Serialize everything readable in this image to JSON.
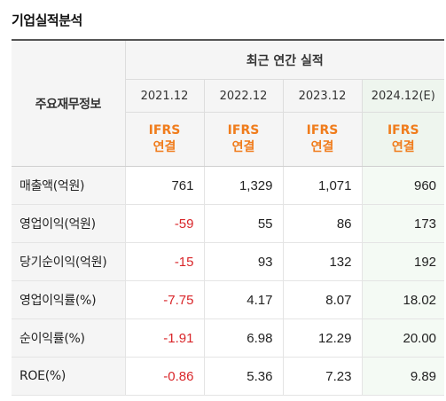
{
  "title": "기업실적분석",
  "header": {
    "label_col": "주요재무정보",
    "group": "최근 연간 실적",
    "years": [
      "2021.12",
      "2022.12",
      "2023.12",
      "2024.12(E)"
    ],
    "standard_line1": "IFRS",
    "standard_line2": "연결"
  },
  "rows": [
    {
      "label": "매출액(억원)",
      "values": [
        "761",
        "1,329",
        "1,071",
        "960"
      ]
    },
    {
      "label": "영업이익(억원)",
      "values": [
        "-59",
        "55",
        "86",
        "173"
      ]
    },
    {
      "label": "당기순이익(억원)",
      "values": [
        "-15",
        "93",
        "132",
        "192"
      ]
    },
    {
      "label": "영업이익률(%)",
      "values": [
        "-7.75",
        "4.17",
        "8.07",
        "18.02"
      ]
    },
    {
      "label": "순이익률(%)",
      "values": [
        "-1.91",
        "6.98",
        "12.29",
        "20.00"
      ]
    },
    {
      "label": "ROE(%)",
      "values": [
        "-0.86",
        "5.36",
        "7.23",
        "9.89"
      ]
    }
  ],
  "colors": {
    "negative": "#d9262a",
    "ifrs": "#f07c1c",
    "estimate_bg": "#eef5ee"
  }
}
